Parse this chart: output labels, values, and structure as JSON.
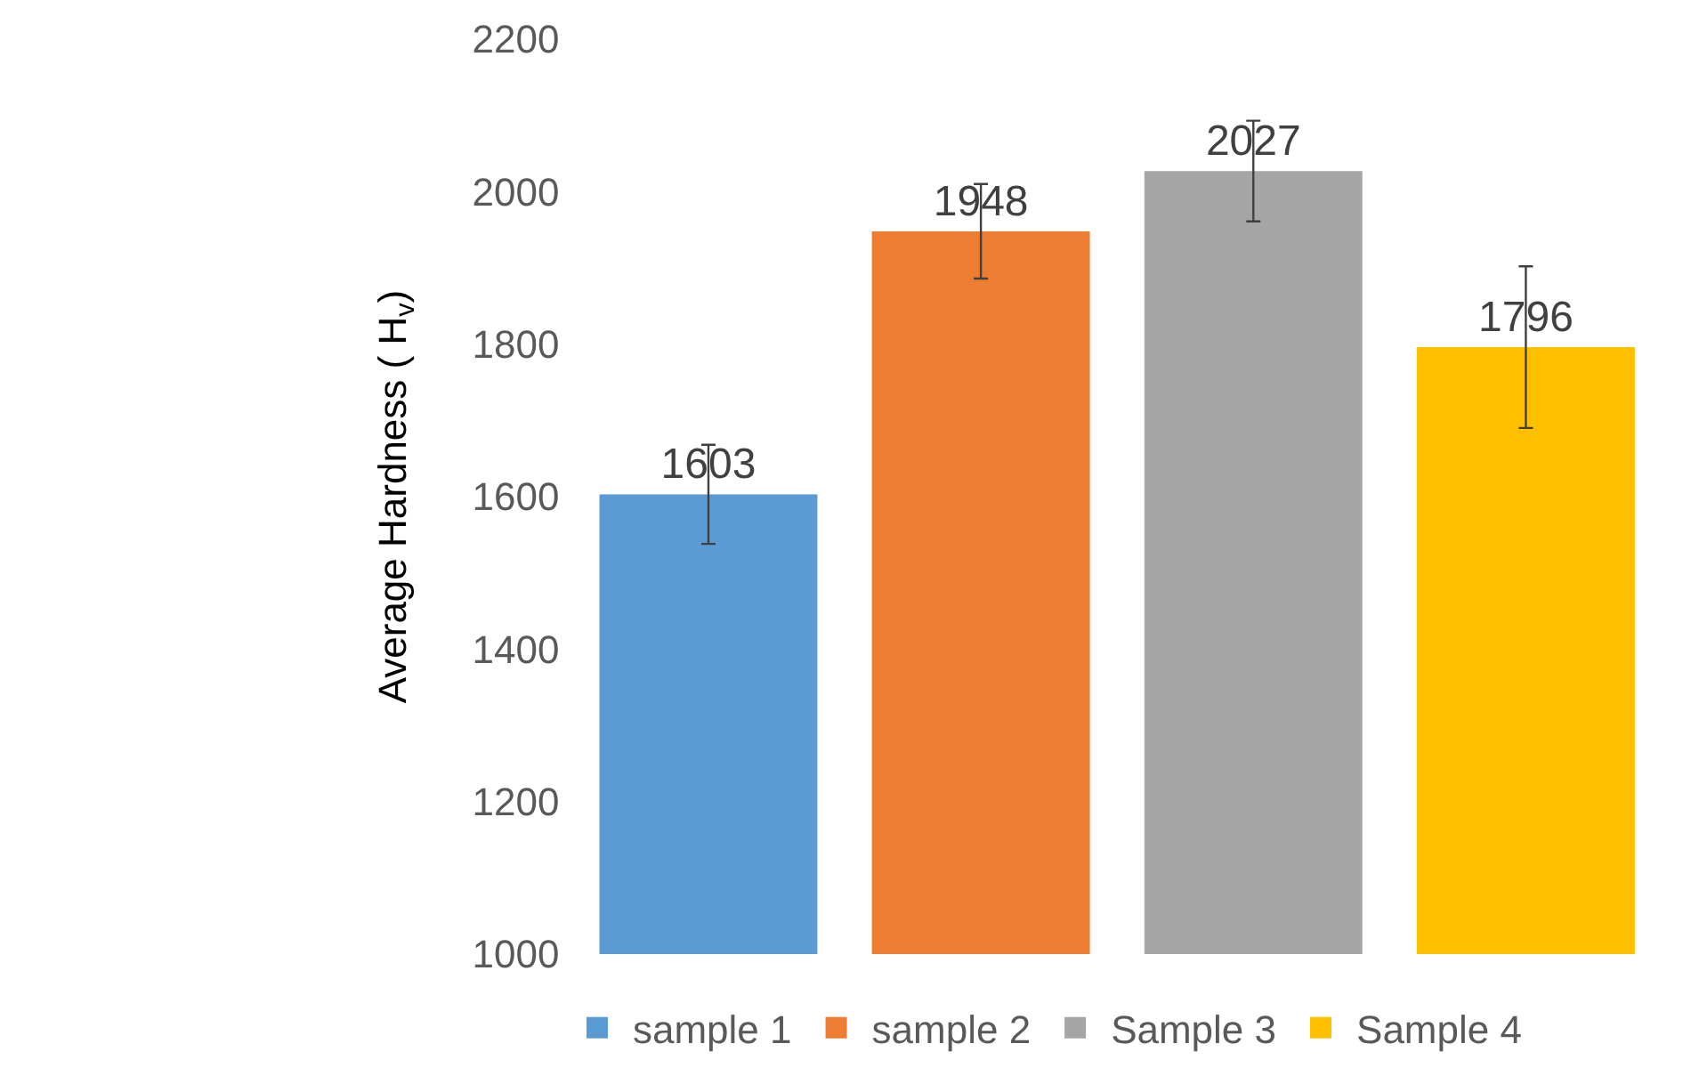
{
  "chart_data": {
    "type": "bar",
    "ylabel": "Average Hardness ( H$_{v}$)",
    "categories": [
      null
    ],
    "series": [
      {
        "name": "sample 1",
        "color": "#5b9bd5",
        "values": [
          1603
        ],
        "errors": [
          65
        ]
      },
      {
        "name": "sample 2",
        "color": "#ed7d31",
        "values": [
          1948
        ],
        "errors": [
          62
        ]
      },
      {
        "name": "Sample 3",
        "color": "#a5a5a5",
        "values": [
          2027
        ],
        "errors": [
          66
        ]
      },
      {
        "name": "Sample 4",
        "color": "#ffc000",
        "values": [
          1796
        ],
        "errors": [
          106
        ]
      }
    ],
    "ylim": [
      1000,
      2200
    ],
    "yticks": [
      1000,
      1200,
      1400,
      1600,
      1800,
      2000,
      2200
    ],
    "data_labels": true,
    "legend": "bottom"
  }
}
